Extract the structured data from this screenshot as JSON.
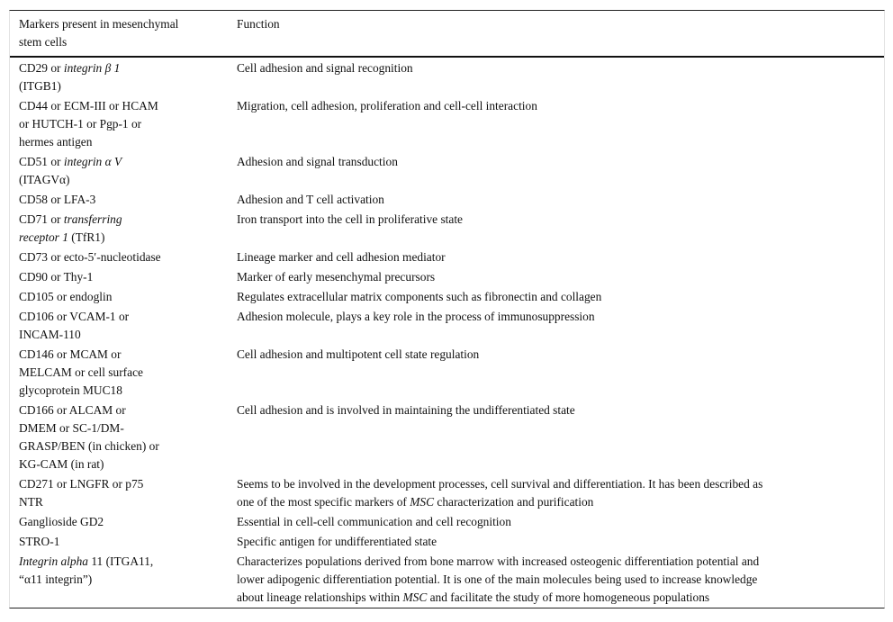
{
  "header": {
    "col1": [
      "Markers present in mesenchymal",
      "stem cells"
    ],
    "col2": [
      "Function"
    ]
  },
  "rows": [
    {
      "marker": [
        [
          {
            "t": "CD29 or "
          },
          {
            "t": "integrin β 1",
            "i": true
          }
        ],
        [
          {
            "t": "(ITGB1)"
          }
        ]
      ],
      "function": [
        [
          {
            "t": "Cell adhesion and signal recognition"
          }
        ]
      ]
    },
    {
      "marker": [
        [
          {
            "t": "CD44 or ECM-III or HCAM"
          }
        ],
        [
          {
            "t": "or HUTCH-1 or Pgp-1 or"
          }
        ],
        [
          {
            "t": "hermes antigen"
          }
        ]
      ],
      "function": [
        [
          {
            "t": "Migration, cell adhesion, proliferation and cell-cell interaction"
          }
        ]
      ]
    },
    {
      "marker": [
        [
          {
            "t": "CD51 or "
          },
          {
            "t": "integrin α V",
            "i": true
          }
        ],
        [
          {
            "t": "(ITAGVα)"
          }
        ]
      ],
      "function": [
        [
          {
            "t": "Adhesion and signal transduction"
          }
        ]
      ]
    },
    {
      "marker": [
        [
          {
            "t": "CD58 or LFA-3"
          }
        ]
      ],
      "function": [
        [
          {
            "t": "Adhesion and T cell activation"
          }
        ]
      ]
    },
    {
      "marker": [
        [
          {
            "t": "CD71 or "
          },
          {
            "t": "transferring",
            "i": true
          }
        ],
        [
          {
            "t": "receptor 1",
            "i": true
          },
          {
            "t": " (TfR1)"
          }
        ]
      ],
      "function": [
        [
          {
            "t": "Iron transport into the cell in proliferative state"
          }
        ]
      ]
    },
    {
      "marker": [
        [
          {
            "t": "CD73 or ecto-5′-nucleotidase"
          }
        ]
      ],
      "function": [
        [
          {
            "t": "Lineage marker and cell adhesion mediator"
          }
        ]
      ]
    },
    {
      "marker": [
        [
          {
            "t": "CD90 or Thy-1"
          }
        ]
      ],
      "function": [
        [
          {
            "t": "Marker of early mesenchymal precursors"
          }
        ]
      ]
    },
    {
      "marker": [
        [
          {
            "t": "CD105 or endoglin"
          }
        ]
      ],
      "function": [
        [
          {
            "t": "Regulates extracellular matrix components such as fibronectin and collagen"
          }
        ]
      ]
    },
    {
      "marker": [
        [
          {
            "t": "CD106 or VCAM-1 or"
          }
        ],
        [
          {
            "t": "INCAM-110"
          }
        ]
      ],
      "function": [
        [
          {
            "t": "Adhesion molecule, plays a key role in the process of immunosuppression"
          }
        ]
      ]
    },
    {
      "marker": [
        [
          {
            "t": "CD146 or MCAM or"
          }
        ],
        [
          {
            "t": "MELCAM or cell surface"
          }
        ],
        [
          {
            "t": "glycoprotein MUC18"
          }
        ]
      ],
      "function": [
        [
          {
            "t": "Cell adhesion and multipotent cell state regulation"
          }
        ]
      ]
    },
    {
      "marker": [
        [
          {
            "t": "CD166 or ALCAM or"
          }
        ],
        [
          {
            "t": "DMEM or SC-1/DM-"
          }
        ],
        [
          {
            "t": "GRASP/BEN (in chicken) or"
          }
        ],
        [
          {
            "t": "KG-CAM (in rat)"
          }
        ]
      ],
      "function": [
        [
          {
            "t": "Cell adhesion and is involved in maintaining the undifferentiated state"
          }
        ]
      ]
    },
    {
      "marker": [
        [
          {
            "t": "CD271 or LNGFR or p75"
          }
        ],
        [
          {
            "t": "NTR"
          }
        ]
      ],
      "function": [
        [
          {
            "t": "Seems to be involved in the development processes, cell survival and differentiation. It has been described as"
          }
        ],
        [
          {
            "t": "one of the most specific markers of "
          },
          {
            "t": "MSC",
            "i": true
          },
          {
            "t": " characterization and purification"
          }
        ]
      ]
    },
    {
      "marker": [
        [
          {
            "t": "Ganglioside GD2"
          }
        ]
      ],
      "function": [
        [
          {
            "t": "Essential in cell-cell communication and cell recognition"
          }
        ]
      ]
    },
    {
      "marker": [
        [
          {
            "t": "STRO-1"
          }
        ]
      ],
      "function": [
        [
          {
            "t": "Specific antigen for undifferentiated state"
          }
        ]
      ]
    },
    {
      "marker": [
        [
          {
            "t": "Integrin alpha",
            "i": true
          },
          {
            "t": " 11 (ITGA11,"
          }
        ],
        [
          {
            "t": "“α11 integrin”)"
          }
        ]
      ],
      "function": [
        [
          {
            "t": "Characterizes populations derived from bone marrow with increased osteogenic differentiation potential and"
          }
        ],
        [
          {
            "t": "lower adipogenic differentiation potential. It is one of the main molecules being used to increase knowledge"
          }
        ],
        [
          {
            "t": "about lineage relationships within "
          },
          {
            "t": "MSC",
            "i": true
          },
          {
            "t": " and facilitate the study of more homogeneous populations"
          }
        ]
      ]
    }
  ]
}
